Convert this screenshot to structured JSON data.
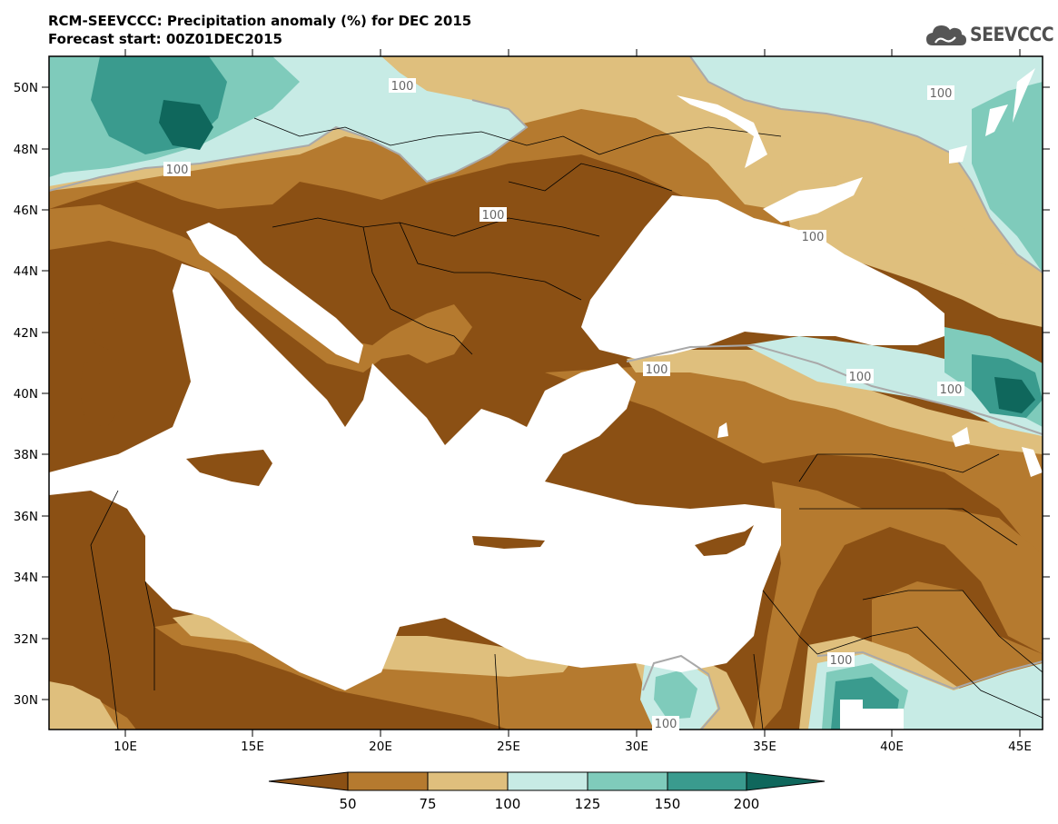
{
  "header": {
    "title_line1": "RCM-SEEVCCC: Precipitation anomaly (%) for DEC 2015",
    "title_line2": "Forecast start: 00Z01DEC2015"
  },
  "logo": {
    "text": "SEEVCCC",
    "icon": "cloud-icon",
    "color": "#4f4f4f"
  },
  "map": {
    "lat_ticks": [
      "50N",
      "48N",
      "46N",
      "44N",
      "42N",
      "40N",
      "38N",
      "36N",
      "34N",
      "32N",
      "30N"
    ],
    "lon_ticks": [
      "10E",
      "15E",
      "20E",
      "25E",
      "30E",
      "35E",
      "40E",
      "45E"
    ],
    "contour_labels": [
      "100",
      "100",
      "100",
      "100",
      "100",
      "100",
      "100",
      "100",
      "100",
      "100",
      "100"
    ]
  },
  "colorbar": {
    "ticks": [
      "50",
      "75",
      "100",
      "125",
      "150",
      "200"
    ],
    "colors": [
      "#8b5014",
      "#b57a2f",
      "#dfbf7d",
      "#c7ebe5",
      "#7fcbbb",
      "#3a9b8e",
      "#0f675c"
    ]
  },
  "palette": {
    "very_dry": "#8b5014",
    "dry": "#b57a2f",
    "slightly_dry": "#dfbf7d",
    "slightly_wet": "#c7ebe5",
    "wet": "#7fcbbb",
    "very_wet": "#3a9b8e",
    "extreme_wet": "#0f675c",
    "sea": "#ffffff"
  }
}
